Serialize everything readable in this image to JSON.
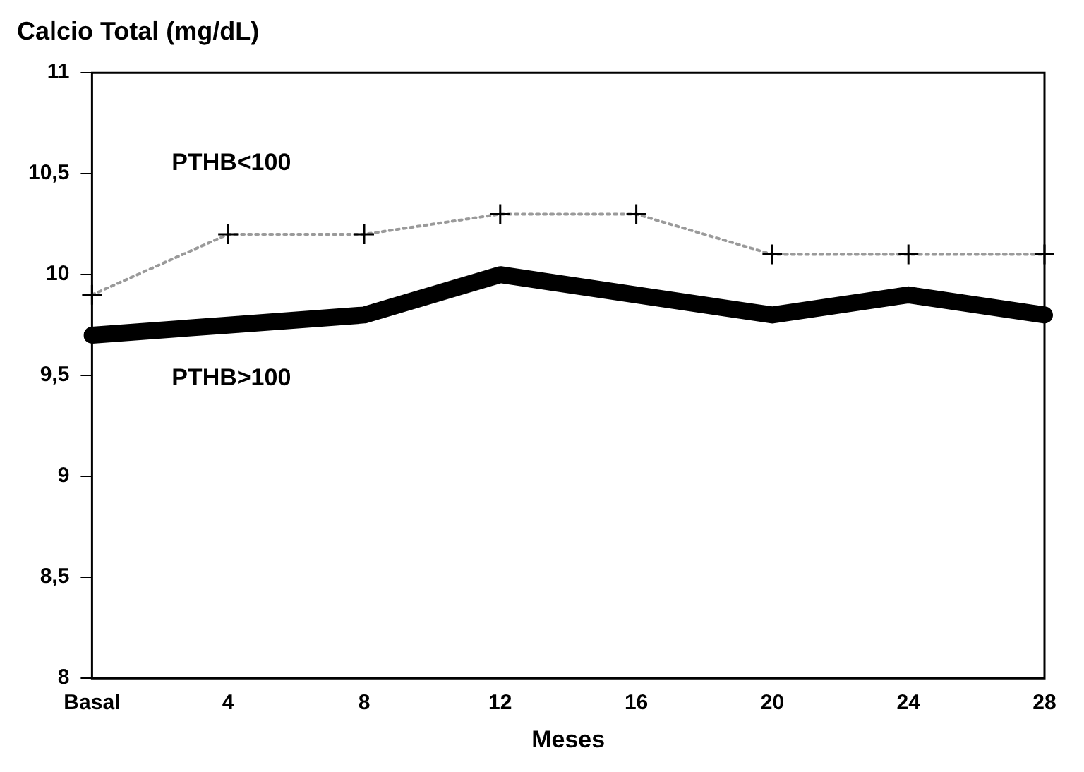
{
  "chart_data": {
    "type": "line",
    "title": "Calcio Total (mg/dL)",
    "xlabel": "Meses",
    "categories": [
      "Basal",
      "4",
      "8",
      "12",
      "16",
      "20",
      "24",
      "28"
    ],
    "series": [
      {
        "name": "PTHB<100",
        "color": "#9a9a9a",
        "values": [
          9.9,
          10.2,
          10.2,
          10.3,
          10.3,
          10.1,
          10.1,
          10.1
        ],
        "marker": "cross",
        "line_style": "dotted"
      },
      {
        "name": "PTHB>100",
        "color": "#000000",
        "values": [
          9.7,
          9.75,
          9.8,
          10.0,
          9.9,
          9.8,
          9.9,
          9.8
        ],
        "marker": "none",
        "line_style": "solid"
      }
    ],
    "ylim": [
      8,
      11
    ],
    "yticks": [
      8,
      {
        "value": 8.5,
        "label": "8,5"
      },
      9,
      {
        "value": 9.5,
        "label": "9,5"
      },
      10,
      {
        "value": 10.5,
        "label": "10,5"
      },
      11
    ],
    "grid": false,
    "legend": false
  }
}
